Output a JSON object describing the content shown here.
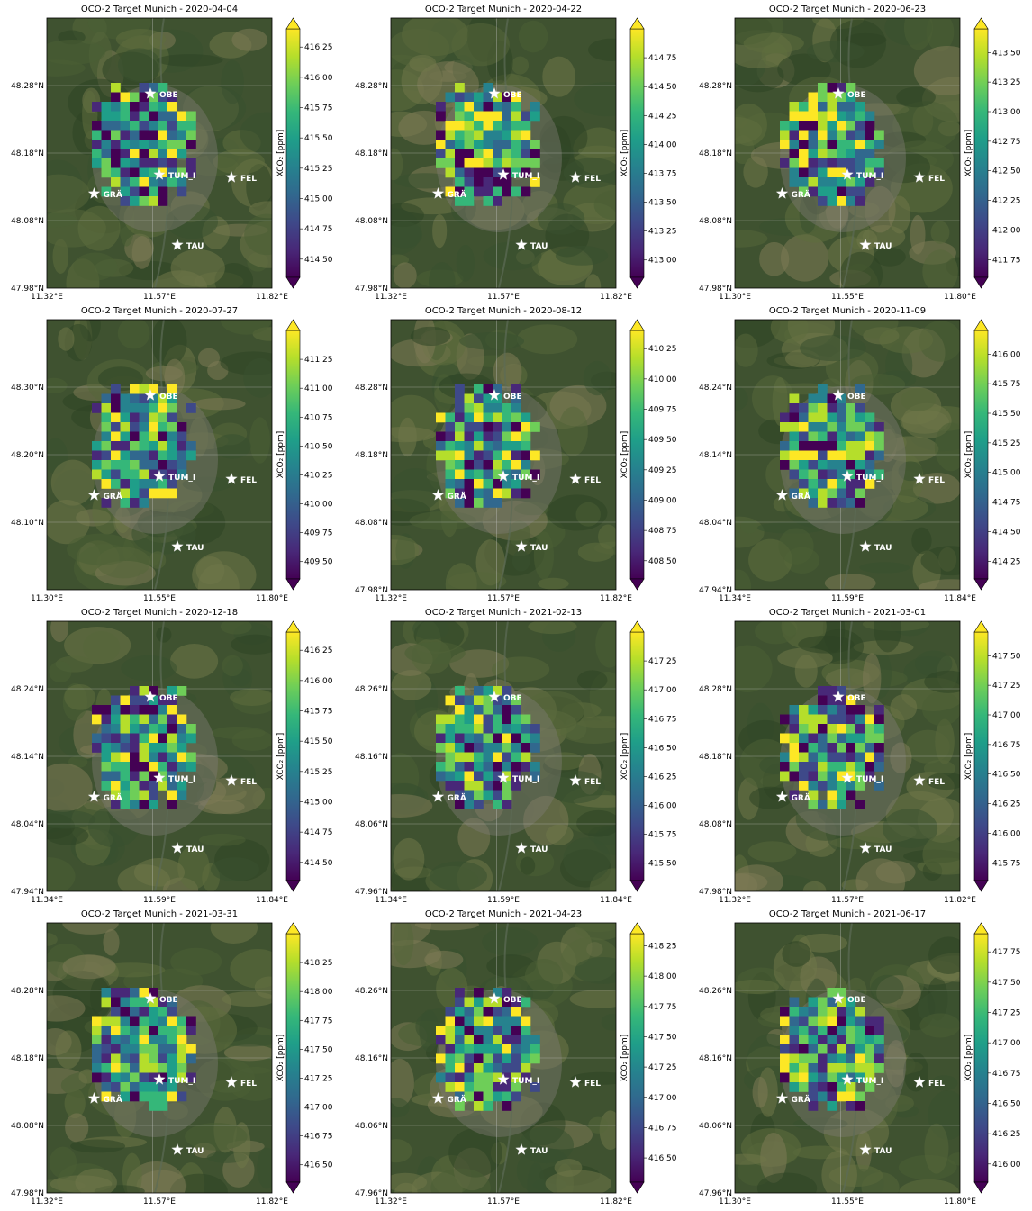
{
  "colorbar_label": "XCO₂ [ppm]",
  "colormap": [
    "#440154",
    "#482878",
    "#3e4989",
    "#31688e",
    "#26828e",
    "#1f9e89",
    "#35b779",
    "#6ece58",
    "#b5de2b",
    "#fde725"
  ],
  "site_labels": [
    "OBE",
    "TUM_I",
    "FEL",
    "GRÄ",
    "TAU"
  ],
  "chart_data": [
    {
      "type": "heatmap",
      "title": "OCO-2 Target Munich - 2020-04-04",
      "xticks": [
        "11.32°E",
        "11.57°E",
        "11.82°E"
      ],
      "yticks": [
        "48.28°N",
        "48.18°N",
        "48.08°N",
        "47.98°N"
      ],
      "colorbar_ticks": [
        "416.25",
        "416.00",
        "415.75",
        "415.50",
        "415.25",
        "415.00",
        "414.75",
        "414.50"
      ],
      "colorbar_range": [
        414.35,
        416.4
      ],
      "seed": 11,
      "mask": [
        [
          12,
          11,
          6
        ],
        [
          8,
          9,
          6
        ],
        [
          2,
          13,
          5
        ],
        [
          3,
          13,
          6
        ],
        [
          4,
          13,
          8
        ]
      ]
    },
    {
      "type": "heatmap",
      "title": "OCO-2 Target Munich - 2020-04-22",
      "xticks": [
        "11.32°E",
        "11.57°E",
        "11.82°E"
      ],
      "yticks": [
        "48.28°N",
        "48.18°N",
        "48.08°N",
        "47.98°N"
      ],
      "colorbar_ticks": [
        "414.75",
        "414.50",
        "414.25",
        "414.00",
        "413.75",
        "413.50",
        "413.25",
        "413.00"
      ],
      "colorbar_range": [
        412.85,
        415.0
      ],
      "seed": 23,
      "mask": [
        [
          10,
          8,
          8
        ],
        [
          5,
          10,
          10
        ],
        [
          2,
          11,
          6
        ],
        [
          3,
          13,
          5
        ],
        [
          4,
          13,
          7
        ]
      ]
    },
    {
      "type": "heatmap",
      "title": "OCO-2 Target Munich - 2020-06-23",
      "xticks": [
        "11.30°E",
        "11.55°E",
        "11.80°E"
      ],
      "yticks": [
        "48.28°N",
        "48.18°N",
        "48.08°N",
        "47.98°N"
      ],
      "colorbar_ticks": [
        "413.50",
        "413.25",
        "413.00",
        "412.75",
        "412.50",
        "412.25",
        "412.00",
        "411.75"
      ],
      "colorbar_range": [
        411.6,
        413.7
      ],
      "seed": 37,
      "mask": [
        [
          11,
          9,
          8
        ],
        [
          12,
          11,
          7
        ],
        [
          3,
          13,
          6
        ],
        [
          4,
          13,
          8
        ]
      ]
    },
    {
      "type": "heatmap",
      "title": "OCO-2 Target Munich - 2020-07-27",
      "xticks": [
        "11.30°E",
        "11.55°E",
        "11.80°E"
      ],
      "yticks": [
        "48.30°N",
        "48.20°N",
        "48.10°N"
      ],
      "colorbar_ticks": [
        "411.25",
        "411.00",
        "410.75",
        "410.50",
        "410.25",
        "410.00",
        "409.75",
        "409.50"
      ],
      "colorbar_range": [
        409.35,
        411.5
      ],
      "seed": 41,
      "mask": [
        [
          10,
          9,
          7
        ],
        [
          5,
          10,
          10
        ],
        [
          2,
          11,
          6
        ],
        [
          3,
          13,
          8
        ],
        [
          4,
          13,
          7
        ]
      ]
    },
    {
      "type": "heatmap",
      "title": "OCO-2 Target Munich - 2020-08-12",
      "xticks": [
        "11.32°E",
        "11.57°E",
        "11.82°E"
      ],
      "yticks": [
        "48.28°N",
        "48.18°N",
        "48.08°N",
        "47.98°N"
      ],
      "colorbar_ticks": [
        "410.25",
        "410.00",
        "409.75",
        "409.50",
        "409.25",
        "409.00",
        "408.75",
        "408.50"
      ],
      "colorbar_range": [
        408.35,
        410.4
      ],
      "seed": 53,
      "mask": [
        [
          12,
          8,
          8
        ],
        [
          6,
          10,
          10
        ],
        [
          2,
          11,
          6
        ],
        [
          3,
          13,
          5
        ],
        [
          4,
          13,
          7
        ]
      ]
    },
    {
      "type": "heatmap",
      "title": "OCO-2 Target Munich - 2020-11-09",
      "xticks": [
        "11.34°E",
        "11.59°E",
        "11.84°E"
      ],
      "yticks": [
        "48.24°N",
        "48.14°N",
        "48.04°N",
        "47.94°N"
      ],
      "colorbar_ticks": [
        "416.00",
        "415.75",
        "415.50",
        "415.25",
        "415.00",
        "414.75",
        "414.50",
        "414.25"
      ],
      "colorbar_range": [
        414.1,
        416.2
      ],
      "seed": 67,
      "mask": [
        [
          1,
          10,
          6
        ],
        [
          3,
          13,
          6
        ],
        [
          4,
          13,
          7
        ]
      ]
    },
    {
      "type": "heatmap",
      "title": "OCO-2 Target Munich - 2020-12-18",
      "xticks": [
        "11.34°E",
        "11.59°E",
        "11.84°E"
      ],
      "yticks": [
        "48.24°N",
        "48.14°N",
        "48.04°N",
        "47.94°N"
      ],
      "colorbar_ticks": [
        "416.25",
        "416.00",
        "415.75",
        "415.50",
        "415.25",
        "415.00",
        "414.75",
        "414.50"
      ],
      "colorbar_range": [
        414.35,
        416.4
      ],
      "seed": 79,
      "mask": [
        [
          13,
          10,
          7
        ],
        [
          11,
          7,
          9
        ],
        [
          9,
          9,
          7
        ],
        [
          2,
          11,
          6
        ],
        [
          3,
          13,
          5
        ],
        [
          4,
          13,
          7
        ]
      ]
    },
    {
      "type": "heatmap",
      "title": "OCO-2 Target Munich - 2021-02-13",
      "xticks": [
        "11.34°E",
        "11.59°E",
        "11.84°E"
      ],
      "yticks": [
        "48.26°N",
        "48.16°N",
        "48.06°N",
        "47.96°N"
      ],
      "colorbar_ticks": [
        "417.25",
        "417.00",
        "416.75",
        "416.50",
        "416.25",
        "416.00",
        "415.75",
        "415.50"
      ],
      "colorbar_range": [
        415.35,
        417.5
      ],
      "seed": 83,
      "mask": [
        [
          10,
          9,
          8
        ],
        [
          2,
          11,
          6
        ],
        [
          3,
          13,
          5
        ],
        [
          4,
          13,
          7
        ]
      ]
    },
    {
      "type": "heatmap",
      "title": "OCO-2 Target Munich - 2021-03-01",
      "xticks": [
        "11.32°E",
        "11.57°E",
        "11.82°E"
      ],
      "yticks": [
        "48.28°N",
        "48.18°N",
        "48.08°N",
        "47.98°N"
      ],
      "colorbar_ticks": [
        "417.50",
        "417.25",
        "417.00",
        "416.75",
        "416.50",
        "416.25",
        "416.00",
        "415.75"
      ],
      "colorbar_range": [
        415.6,
        417.7
      ],
      "seed": 97,
      "mask": [
        [
          10,
          9,
          8
        ],
        [
          11,
          4,
          7
        ],
        [
          2,
          11,
          6
        ],
        [
          3,
          13,
          5
        ],
        [
          4,
          13,
          7
        ]
      ]
    },
    {
      "type": "heatmap",
      "title": "OCO-2 Target Munich - 2021-03-31",
      "xticks": [
        "11.32°E",
        "11.57°E",
        "11.82°E"
      ],
      "yticks": [
        "48.28°N",
        "48.18°N",
        "48.08°N",
        "47.98°N"
      ],
      "colorbar_ticks": [
        "418.25",
        "418.00",
        "417.75",
        "417.50",
        "417.25",
        "417.00",
        "416.75",
        "416.50"
      ],
      "colorbar_range": [
        416.35,
        418.5
      ],
      "seed": 101,
      "mask": [
        [
          10,
          9,
          8
        ],
        [
          5,
          10,
          10
        ],
        [
          2,
          11,
          6
        ],
        [
          3,
          13,
          5
        ],
        [
          4,
          13,
          7
        ]
      ]
    },
    {
      "type": "heatmap",
      "title": "OCO-2 Target Munich - 2021-04-23",
      "xticks": [
        "11.32°E",
        "11.57°E",
        "11.82°E"
      ],
      "yticks": [
        "48.26°N",
        "48.16°N",
        "48.06°N",
        "47.96°N"
      ],
      "colorbar_ticks": [
        "418.25",
        "418.00",
        "417.75",
        "417.50",
        "417.25",
        "417.00",
        "416.75",
        "416.50"
      ],
      "colorbar_range": [
        416.3,
        418.35
      ],
      "seed": 113,
      "mask": [
        [
          10,
          9,
          8
        ],
        [
          2,
          11,
          6
        ],
        [
          3,
          13,
          5
        ],
        [
          4,
          13,
          7
        ]
      ]
    },
    {
      "type": "heatmap",
      "title": "OCO-2 Target Munich - 2021-06-17",
      "xticks": [
        "11.30°E",
        "11.55°E",
        "11.80°E"
      ],
      "yticks": [
        "48.26°N",
        "48.16°N",
        "48.06°N",
        "47.96°N"
      ],
      "colorbar_ticks": [
        "417.75",
        "417.50",
        "417.25",
        "417.00",
        "416.75",
        "416.50",
        "416.25",
        "416.00"
      ],
      "colorbar_range": [
        415.85,
        417.9
      ],
      "seed": 127,
      "mask": [
        [
          10,
          8,
          7
        ],
        [
          2,
          11,
          6
        ],
        [
          3,
          13,
          5
        ],
        [
          4,
          13,
          7
        ]
      ]
    }
  ]
}
